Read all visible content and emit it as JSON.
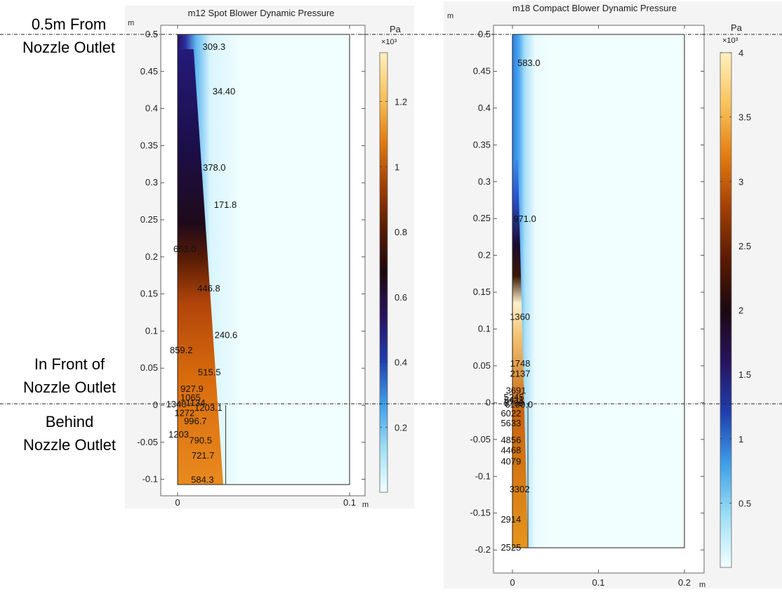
{
  "annotations": {
    "top_line": [
      "0.5m From",
      "Nozzle Outlet"
    ],
    "front": [
      "In Front of",
      "Nozzle Outlet"
    ],
    "behind": [
      "Behind",
      "Nozzle Outlet"
    ]
  },
  "chart_data": [
    {
      "type": "heatmap",
      "title": "m12 Spot Blower Dynamic Pressure",
      "xunit": "m",
      "yunit": "m",
      "xlim": [
        0,
        0.1
      ],
      "ylim": [
        -0.107,
        0.5
      ],
      "domain_x": [
        0,
        0.1
      ],
      "xticks": [
        0,
        0.1
      ],
      "yticks": [
        -0.1,
        -0.05,
        0,
        0.05,
        0.1,
        0.15,
        0.2,
        0.25,
        0.3,
        0.35,
        0.4,
        0.45,
        0.5
      ],
      "colorbar": {
        "unit": "Pa",
        "multiplier": "×10³",
        "range": [
          0.0,
          1.35
        ],
        "ticks": [
          0.2,
          0.4,
          0.6,
          0.8,
          1,
          1.2
        ],
        "colormap": [
          "#f2ffff",
          "#9fdff5",
          "#3f9fe8",
          "#1f3fae",
          "#27135e",
          "#1c0810",
          "#5a1a02",
          "#a24005",
          "#e27d12",
          "#f8c35d",
          "#fff0bf"
        ]
      },
      "contour_labels": [
        {
          "text": "309.3",
          "x": 0.0145,
          "y": 0.483
        },
        {
          "text": "34.40",
          "x": 0.0203,
          "y": 0.423
        },
        {
          "text": "378.0",
          "x": 0.0147,
          "y": 0.32
        },
        {
          "text": "171.8",
          "x": 0.0211,
          "y": 0.27
        },
        {
          "text": "653.0",
          "x": -0.0025,
          "y": 0.21
        },
        {
          "text": "446.8",
          "x": 0.0115,
          "y": 0.157
        },
        {
          "text": "240.6",
          "x": 0.0215,
          "y": 0.094
        },
        {
          "text": "859.2",
          "x": -0.0045,
          "y": 0.074
        },
        {
          "text": "515.5",
          "x": 0.0118,
          "y": 0.044
        },
        {
          "text": "927.9",
          "x": 0.0017,
          "y": 0.022
        },
        {
          "text": "1065",
          "x": 0.0016,
          "y": 0.01
        },
        {
          "text": "1340",
          "x": -0.0067,
          "y": 0.001
        },
        {
          "text": "1134",
          "x": 0.0047,
          "y": 0.003
        },
        {
          "text": "1203.1",
          "x": 0.0098,
          "y": -0.004
        },
        {
          "text": "1272",
          "x": -0.0019,
          "y": -0.011
        },
        {
          "text": "996.7",
          "x": 0.0037,
          "y": -0.022
        },
        {
          "text": "1203",
          "x": -0.0053,
          "y": -0.04
        },
        {
          "text": "790.5",
          "x": 0.0067,
          "y": -0.048
        },
        {
          "text": "721.7",
          "x": 0.0081,
          "y": -0.068
        },
        {
          "text": "584.3",
          "x": 0.0078,
          "y": -0.101
        }
      ]
    },
    {
      "type": "heatmap",
      "title": "m18 Compact Blower Dynamic Pressure",
      "xunit": "m",
      "yunit": "m",
      "xlim": [
        0,
        0.2
      ],
      "ylim": [
        -0.197,
        0.5
      ],
      "domain_x": [
        0,
        0.2
      ],
      "xticks": [
        0,
        0.1,
        0.2
      ],
      "yticks": [
        -0.2,
        -0.15,
        -0.1,
        -0.05,
        0,
        0.05,
        0.1,
        0.15,
        0.2,
        0.25,
        0.3,
        0.35,
        0.4,
        0.45,
        0.5
      ],
      "colorbar": {
        "unit": "Pa",
        "multiplier": "×10³",
        "range": [
          0.0,
          4.0
        ],
        "ticks": [
          0.5,
          1,
          1.5,
          2,
          2.5,
          3,
          3.5,
          4
        ],
        "colormap": [
          "#f2ffff",
          "#9fdff5",
          "#3f9fe8",
          "#1f3fae",
          "#27135e",
          "#1c0810",
          "#5a1a02",
          "#a24005",
          "#e27d12",
          "#f8c35d",
          "#fff0bf"
        ]
      },
      "contour_labels": [
        {
          "text": "583.0",
          "x": 0.0058,
          "y": 0.461
        },
        {
          "text": "971.0",
          "x": 0.0011,
          "y": 0.249
        },
        {
          "text": "1360",
          "x": -0.0031,
          "y": 0.116
        },
        {
          "text": "1748",
          "x": -0.0028,
          "y": 0.053
        },
        {
          "text": "2137",
          "x": -0.0028,
          "y": 0.039
        },
        {
          "text": "3691",
          "x": -0.0077,
          "y": 0.016
        },
        {
          "text": "5245",
          "x": -0.0102,
          "y": 0.007
        },
        {
          "text": "6411",
          "x": -0.0095,
          "y": 0.003
        },
        {
          "text": "6799",
          "x": -0.0102,
          "y": -0.001
        },
        {
          "text": "6190.0",
          "x": -0.0086,
          "y": -0.003
        },
        {
          "text": "6022",
          "x": -0.0135,
          "y": -0.015
        },
        {
          "text": "5633",
          "x": -0.0135,
          "y": -0.028
        },
        {
          "text": "4856",
          "x": -0.0135,
          "y": -0.051
        },
        {
          "text": "4468",
          "x": -0.0135,
          "y": -0.065
        },
        {
          "text": "4079",
          "x": -0.0135,
          "y": -0.08
        },
        {
          "text": "3302",
          "x": -0.0035,
          "y": -0.118
        },
        {
          "text": "2914",
          "x": -0.0135,
          "y": -0.159
        },
        {
          "text": "2525",
          "x": -0.0135,
          "y": -0.197
        }
      ]
    }
  ]
}
